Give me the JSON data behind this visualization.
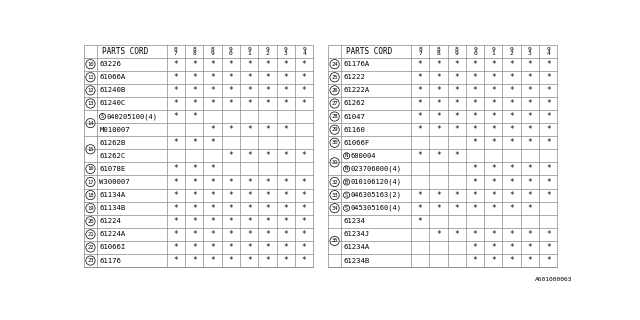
{
  "left_table": {
    "rows": [
      {
        "num": "10",
        "part": "63226",
        "marks": [
          1,
          1,
          1,
          1,
          1,
          1,
          1,
          1
        ]
      },
      {
        "num": "11",
        "part": "61066A",
        "marks": [
          1,
          1,
          1,
          1,
          1,
          1,
          1,
          1
        ]
      },
      {
        "num": "12",
        "part": "61240B",
        "marks": [
          1,
          1,
          1,
          1,
          1,
          1,
          1,
          1
        ]
      },
      {
        "num": "13",
        "part": "61240C",
        "marks": [
          1,
          1,
          1,
          1,
          1,
          1,
          1,
          1
        ]
      },
      {
        "num": "14",
        "part": "S040205100(4)",
        "marks": [
          1,
          1,
          0,
          0,
          0,
          0,
          0,
          0
        ],
        "group_start": true
      },
      {
        "num": "",
        "part": "M010007",
        "marks": [
          0,
          0,
          1,
          1,
          1,
          1,
          1,
          0
        ]
      },
      {
        "num": "15",
        "part": "61262B",
        "marks": [
          1,
          1,
          1,
          0,
          0,
          0,
          0,
          0
        ],
        "group_start": true
      },
      {
        "num": "",
        "part": "61262C",
        "marks": [
          0,
          0,
          0,
          1,
          1,
          1,
          1,
          1
        ]
      },
      {
        "num": "16",
        "part": "61078E",
        "marks": [
          1,
          1,
          1,
          0,
          0,
          0,
          0,
          0
        ]
      },
      {
        "num": "17",
        "part": "W300007",
        "marks": [
          1,
          1,
          1,
          1,
          1,
          1,
          1,
          1
        ]
      },
      {
        "num": "18",
        "part": "61134A",
        "marks": [
          1,
          1,
          1,
          1,
          1,
          1,
          1,
          1
        ]
      },
      {
        "num": "19",
        "part": "61134B",
        "marks": [
          1,
          1,
          1,
          1,
          1,
          1,
          1,
          1
        ]
      },
      {
        "num": "20",
        "part": "61224",
        "marks": [
          1,
          1,
          1,
          1,
          1,
          1,
          1,
          1
        ]
      },
      {
        "num": "21",
        "part": "61224A",
        "marks": [
          1,
          1,
          1,
          1,
          1,
          1,
          1,
          1
        ]
      },
      {
        "num": "22",
        "part": "61066I",
        "marks": [
          1,
          1,
          1,
          1,
          1,
          1,
          1,
          1
        ]
      },
      {
        "num": "23",
        "part": "61176",
        "marks": [
          1,
          1,
          1,
          1,
          1,
          1,
          1,
          1
        ]
      }
    ]
  },
  "right_table": {
    "rows": [
      {
        "num": "24",
        "part": "61176A",
        "marks": [
          1,
          1,
          1,
          1,
          1,
          1,
          1,
          1
        ]
      },
      {
        "num": "25",
        "part": "61222",
        "marks": [
          1,
          1,
          1,
          1,
          1,
          1,
          1,
          1
        ]
      },
      {
        "num": "26",
        "part": "61222A",
        "marks": [
          1,
          1,
          1,
          1,
          1,
          1,
          1,
          1
        ]
      },
      {
        "num": "27",
        "part": "61262",
        "marks": [
          1,
          1,
          1,
          1,
          1,
          1,
          1,
          1
        ]
      },
      {
        "num": "28",
        "part": "61047",
        "marks": [
          1,
          1,
          1,
          1,
          1,
          1,
          1,
          1
        ]
      },
      {
        "num": "29",
        "part": "61160",
        "marks": [
          1,
          1,
          1,
          1,
          1,
          1,
          1,
          1
        ]
      },
      {
        "num": "30",
        "part": "61066F",
        "marks": [
          0,
          0,
          0,
          1,
          1,
          1,
          1,
          1
        ]
      },
      {
        "num": "31",
        "part": "N600004",
        "marks": [
          1,
          1,
          1,
          0,
          0,
          0,
          0,
          0
        ],
        "group_start": true
      },
      {
        "num": "",
        "part": "N023706000(4)",
        "marks": [
          0,
          0,
          0,
          1,
          1,
          1,
          1,
          1
        ]
      },
      {
        "num": "32",
        "part": "B010106120(4)",
        "marks": [
          0,
          0,
          0,
          1,
          1,
          1,
          1,
          1
        ]
      },
      {
        "num": "33",
        "part": "S046305163(2)",
        "marks": [
          1,
          1,
          1,
          1,
          1,
          1,
          1,
          1
        ]
      },
      {
        "num": "34",
        "part": "S045305160(4)",
        "marks": [
          1,
          1,
          1,
          1,
          1,
          1,
          1,
          0
        ]
      },
      {
        "num": "35",
        "part": "61234",
        "marks": [
          1,
          0,
          0,
          0,
          0,
          0,
          0,
          0
        ],
        "group_start": true
      },
      {
        "num": "",
        "part": "61234J",
        "marks": [
          0,
          1,
          1,
          1,
          1,
          1,
          1,
          1
        ]
      },
      {
        "num": "",
        "part": "61234A",
        "marks": [
          0,
          0,
          0,
          1,
          1,
          1,
          1,
          1
        ]
      },
      {
        "num": "",
        "part": "61234B",
        "marks": [
          0,
          0,
          0,
          1,
          1,
          1,
          1,
          1
        ]
      }
    ]
  },
  "year_cols": [
    "8\n7",
    "8\n8",
    "8\n9",
    "9\n0",
    "9\n1",
    "9\n2",
    "9\n3",
    "9\n4"
  ],
  "footer": "A601000063",
  "line_color": "#888888",
  "text_color": "#000000"
}
